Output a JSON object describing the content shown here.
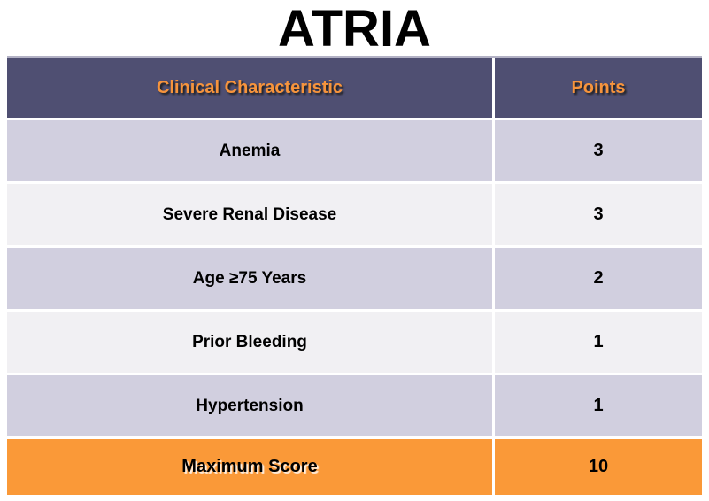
{
  "title": "ATRIA",
  "table": {
    "columns": [
      "Clinical Characteristic",
      "Points"
    ],
    "rows": [
      {
        "characteristic": "Anemia",
        "points": "3"
      },
      {
        "characteristic": "Severe Renal Disease",
        "points": "3"
      },
      {
        "characteristic": "Age ≥75 Years",
        "points": "2"
      },
      {
        "characteristic": "Prior Bleeding",
        "points": "1"
      },
      {
        "characteristic": "Hypertension",
        "points": "1"
      }
    ],
    "total_row": {
      "characteristic": "Maximum Score",
      "points": "10"
    }
  },
  "chart_data": {
    "type": "table",
    "title": "ATRIA",
    "columns": [
      "Clinical Characteristic",
      "Points"
    ],
    "categories": [
      "Anemia",
      "Severe Renal Disease",
      "Age ≥75 Years",
      "Prior Bleeding",
      "Hypertension",
      "Maximum Score"
    ],
    "values": [
      3,
      3,
      2,
      1,
      1,
      10
    ]
  },
  "colors": {
    "header_bg": "#4F4F72",
    "header_text": "#F7943C",
    "row_alt_lavender": "#D1CFDF",
    "row_alt_white": "#F1F0F3",
    "total_bg": "#FA9938",
    "separator": "#FFFFFF",
    "table_top_border": "#B3B2C5"
  }
}
